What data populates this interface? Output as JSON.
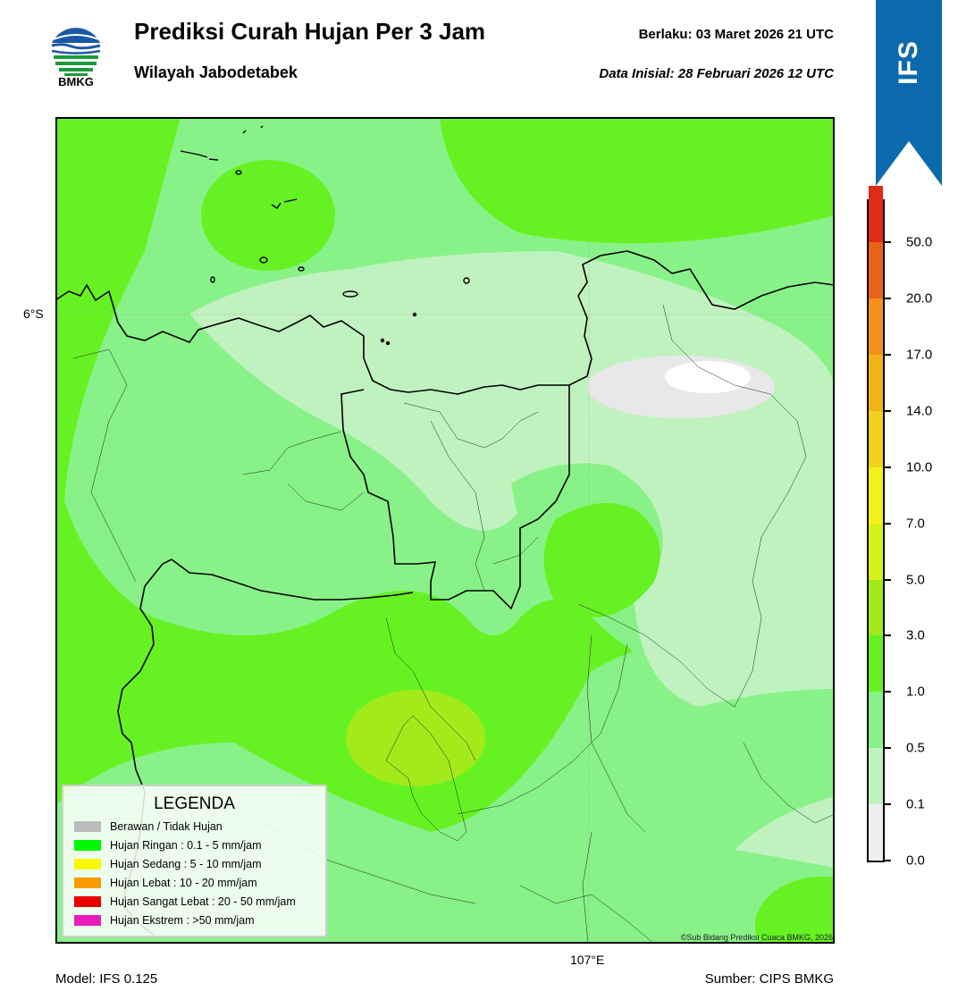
{
  "header": {
    "title": "Prediksi Curah Hujan Per 3 Jam",
    "subtitle": "Wilayah Jabodetabek",
    "valid_text": "Berlaku:  03 Maret 2026 21 UTC",
    "init_text": "Data Inisial:  28 Februari 2026 12 UTC"
  },
  "logo": {
    "text": "BMKG",
    "icon": "bmkg-logo"
  },
  "ribbon": {
    "text": "IFS",
    "color": "#0a6aac"
  },
  "map": {
    "lat_label": "6°S",
    "lon_label": "107°E",
    "copyright": "©Sub Bidang Prediksi Cuaca BMKG, 2026"
  },
  "colorbar": {
    "levels": [
      "0.0",
      "0.1",
      "0.5",
      "1.0",
      "3.0",
      "5.0",
      "7.0",
      "10.0",
      "14.0",
      "17.0",
      "20.0",
      "50.0"
    ],
    "colors": [
      "#efefef",
      "#c0f2c0",
      "#88f288",
      "#66f222",
      "#a2ea1a",
      "#d6f21a",
      "#f2f21a",
      "#f2d21a",
      "#f2b21a",
      "#f2921a",
      "#ea621a",
      "#e22a1a",
      "#e21ac0"
    ]
  },
  "legend": {
    "title": "LEGENDA",
    "items": [
      {
        "label": "Berawan / Tidak Hujan",
        "color": "#bcbcbc"
      },
      {
        "label": "Hujan Ringan : 0.1 - 5 mm/jam",
        "color": "#00f800"
      },
      {
        "label": "Hujan Sedang : 5 - 10 mm/jam",
        "color": "#f8f800"
      },
      {
        "label": "Hujan Lebat : 10 - 20 mm/jam",
        "color": "#f89c00"
      },
      {
        "label": "Hujan Sangat Lebat : 20 - 50 mm/jam",
        "color": "#e80000"
      },
      {
        "label": "Hujan Ekstrem : >50 mm/jam",
        "color": "#e81cb8"
      }
    ]
  },
  "footer": {
    "model": "Model: IFS 0.125",
    "source": "Sumber: CIPS BMKG"
  }
}
